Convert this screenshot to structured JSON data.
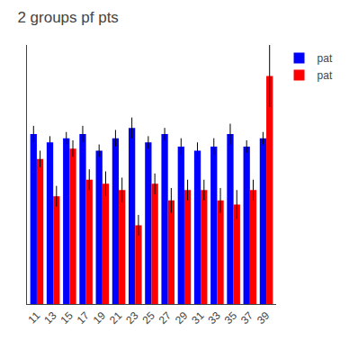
{
  "chart_data": {
    "type": "bar",
    "title": "2 groups pf pts",
    "categories": [
      "11",
      "13",
      "15",
      "17",
      "19",
      "21",
      "23",
      "25",
      "27",
      "29",
      "31",
      "33",
      "35",
      "37",
      "39"
    ],
    "series": [
      {
        "name": "pat",
        "color": "#0000FF",
        "values": [
          0.82,
          0.78,
          0.8,
          0.82,
          0.74,
          0.8,
          0.85,
          0.78,
          0.82,
          0.76,
          0.74,
          0.76,
          0.82,
          0.76,
          0.8
        ],
        "errors": [
          0.04,
          0.03,
          0.03,
          0.04,
          0.03,
          0.04,
          0.05,
          0.03,
          0.03,
          0.04,
          0.04,
          0.04,
          0.05,
          0.03,
          0.03
        ]
      },
      {
        "name": "pat",
        "color": "#FF0000",
        "values": [
          0.7,
          0.52,
          0.75,
          0.6,
          0.58,
          0.55,
          0.38,
          0.58,
          0.5,
          0.55,
          0.55,
          0.5,
          0.48,
          0.55,
          1.1
        ],
        "errors": [
          0.04,
          0.05,
          0.04,
          0.05,
          0.06,
          0.06,
          0.05,
          0.05,
          0.06,
          0.05,
          0.05,
          0.06,
          0.07,
          0.05,
          0.15
        ]
      }
    ],
    "ylim": [
      0,
      1.25
    ],
    "tick_labels": "x",
    "grid": false,
    "legend": "upper right"
  }
}
